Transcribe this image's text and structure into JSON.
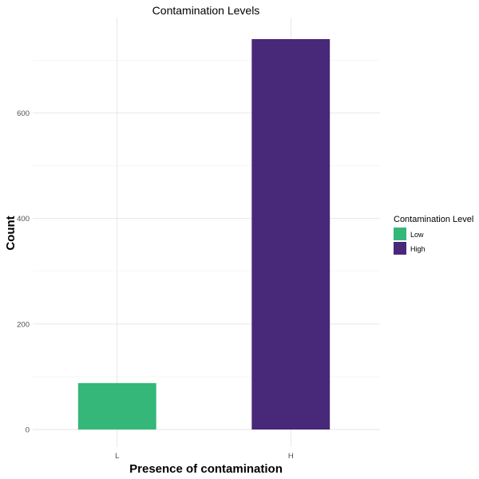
{
  "chart_data": {
    "type": "bar",
    "title": "Contamination Levels",
    "xlabel": "Presence of contamination",
    "ylabel": "Count",
    "categories": [
      "L",
      "H"
    ],
    "values": [
      88,
      740
    ],
    "colors": [
      "#35B779",
      "#482878"
    ],
    "ylim": [
      0,
      740
    ],
    "yticks": [
      0,
      200,
      400,
      600
    ],
    "grid": true,
    "legend": {
      "title": "Contamination Level",
      "position": "right",
      "entries": [
        {
          "label": "Low",
          "color": "#35B779"
        },
        {
          "label": "High",
          "color": "#482878"
        }
      ]
    }
  }
}
